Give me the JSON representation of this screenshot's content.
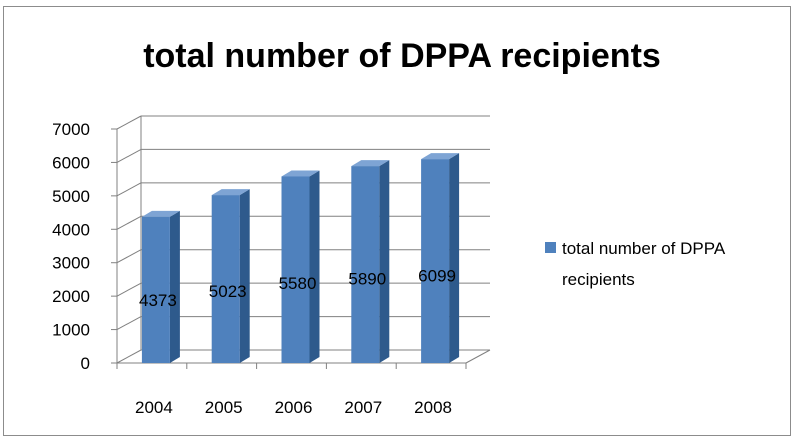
{
  "chart_data": {
    "type": "bar",
    "title": "total number of DPPA recipients",
    "categories": [
      "2004",
      "2005",
      "2006",
      "2007",
      "2008"
    ],
    "series": [
      {
        "name": "total number of DPPA recipients",
        "values": [
          4373,
          5023,
          5580,
          5890,
          6099
        ]
      }
    ],
    "data_labels": [
      "4373",
      "5023",
      "5580",
      "5890",
      "6099"
    ],
    "ylim": [
      0,
      7000
    ],
    "yticks": [
      "0",
      "1000",
      "2000",
      "3000",
      "4000",
      "5000",
      "6000",
      "7000"
    ],
    "legend": {
      "position": "right",
      "lines": [
        "total number of DPPA",
        "recipients"
      ]
    },
    "grid": true,
    "style": "3d-column",
    "colors": {
      "bar_front": "#4f81bd",
      "bar_side": "#2e5a8c",
      "bar_top": "#7ea4d4",
      "grid": "#808080"
    }
  }
}
